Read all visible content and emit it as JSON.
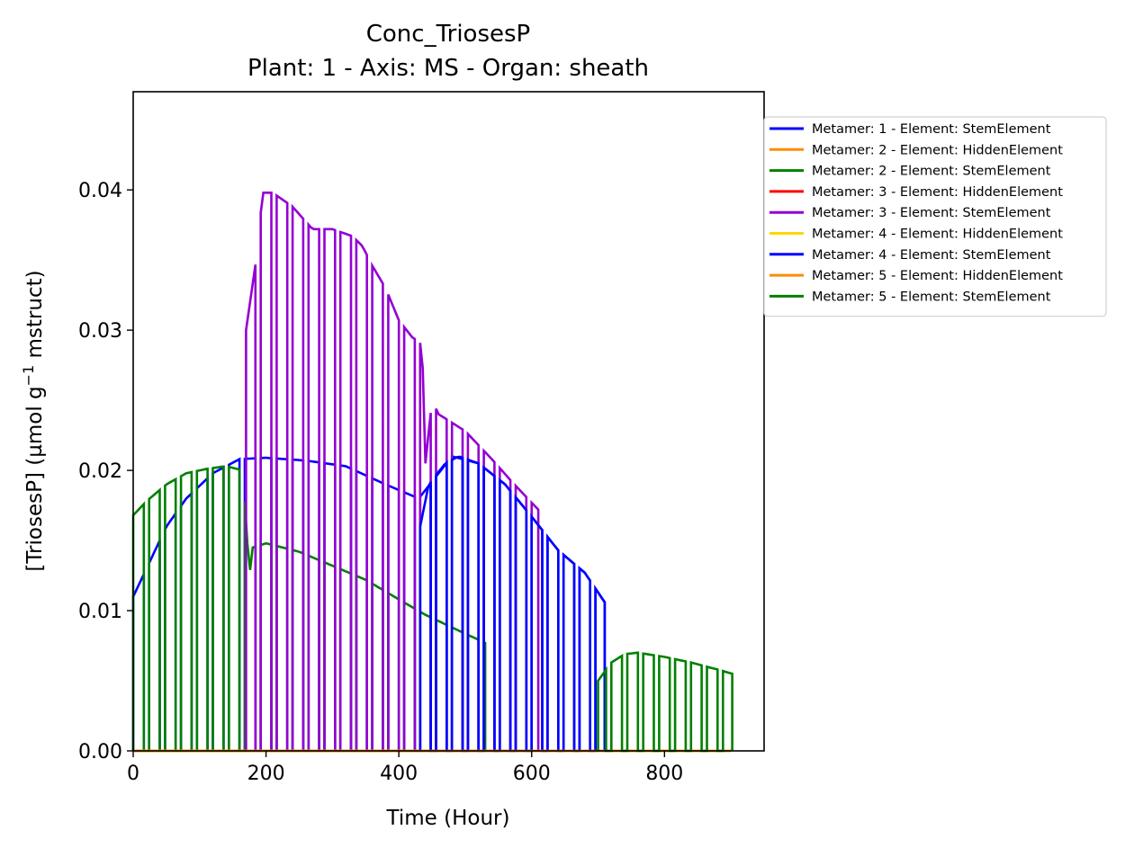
{
  "chart_data": {
    "type": "line",
    "title": "Conc_TriosesP",
    "subtitle": "Plant: 1 - Axis: MS - Organ: sheath",
    "xlabel": "Time (Hour)",
    "ylabel_main": "[TriosesP] (µmol g",
    "ylabel_sup": "−1",
    "ylabel_tail": " mstruct)",
    "xlim": [
      0,
      950
    ],
    "ylim": [
      0,
      0.047
    ],
    "xticks": [
      0,
      200,
      400,
      600,
      800
    ],
    "xtick_labels": [
      "0",
      "200",
      "400",
      "600",
      "800"
    ],
    "yticks": [
      0,
      0.01,
      0.02,
      0.03,
      0.04
    ],
    "ytick_labels": [
      "0.00",
      "0.01",
      "0.02",
      "0.03",
      "0.04"
    ],
    "grid": false,
    "legend_position": "outside-right-top",
    "series": [
      {
        "name": "Metamer: 1 - Element: StemElement",
        "color": "#0000ff",
        "start": 0,
        "end": 710,
        "envelope": [
          [
            0,
            0.011
          ],
          [
            20,
            0.013
          ],
          [
            50,
            0.016
          ],
          [
            80,
            0.018
          ],
          [
            120,
            0.0198
          ],
          [
            160,
            0.0208
          ],
          [
            200,
            0.0209
          ],
          [
            260,
            0.0207
          ],
          [
            320,
            0.0203
          ],
          [
            380,
            0.019
          ],
          [
            430,
            0.018
          ],
          [
            480,
            0.021
          ],
          [
            520,
            0.0205
          ],
          [
            560,
            0.019
          ],
          [
            600,
            0.0167
          ],
          [
            640,
            0.0143
          ],
          [
            680,
            0.0127
          ],
          [
            710,
            0.0106
          ]
        ]
      },
      {
        "name": "Metamer: 2 - Element: HiddenElement",
        "color": "#ff8c00",
        "start": 0,
        "end": 900,
        "envelope": [
          [
            0,
            0
          ],
          [
            900,
            0
          ]
        ]
      },
      {
        "name": "Metamer: 2 - Element: StemElement",
        "color": "#008000",
        "start": 0,
        "end": 530,
        "envelope": [
          [
            0,
            0.0168
          ],
          [
            20,
            0.0178
          ],
          [
            50,
            0.019
          ],
          [
            80,
            0.0198
          ],
          [
            110,
            0.0201
          ],
          [
            140,
            0.0203
          ],
          [
            165,
            0.02
          ],
          [
            175,
            0.0125
          ],
          [
            180,
            0.0145
          ],
          [
            200,
            0.0148
          ],
          [
            250,
            0.0142
          ],
          [
            300,
            0.0132
          ],
          [
            350,
            0.0122
          ],
          [
            400,
            0.0108
          ],
          [
            440,
            0.0097
          ],
          [
            480,
            0.0088
          ],
          [
            530,
            0.0077
          ]
        ]
      },
      {
        "name": "Metamer: 3 - Element: HiddenElement",
        "color": "#ff0000",
        "start": 0,
        "end": 600,
        "envelope": [
          [
            0,
            0
          ],
          [
            600,
            0
          ]
        ]
      },
      {
        "name": "Metamer: 3 - Element: StemElement",
        "color": "#9400d3",
        "start": 170,
        "end": 610,
        "envelope": [
          [
            170,
            0.03
          ],
          [
            185,
            0.035
          ],
          [
            195,
            0.0398
          ],
          [
            210,
            0.0398
          ],
          [
            240,
            0.0388
          ],
          [
            270,
            0.0372
          ],
          [
            300,
            0.0372
          ],
          [
            330,
            0.0367
          ],
          [
            345,
            0.036
          ],
          [
            360,
            0.0346
          ],
          [
            380,
            0.033
          ],
          [
            400,
            0.0307
          ],
          [
            420,
            0.0295
          ],
          [
            435,
            0.029
          ],
          [
            440,
            0.0205
          ],
          [
            450,
            0.025
          ],
          [
            460,
            0.024
          ],
          [
            500,
            0.0228
          ],
          [
            540,
            0.0208
          ],
          [
            570,
            0.0192
          ],
          [
            610,
            0.0172
          ]
        ]
      },
      {
        "name": "Metamer: 4 - Element: HiddenElement",
        "color": "#ffd700",
        "start": 0,
        "end": 900,
        "envelope": [
          [
            0,
            0
          ],
          [
            900,
            0
          ]
        ]
      },
      {
        "name": "Metamer: 4 - Element: StemElement",
        "color": "#0000ff",
        "start": 430,
        "end": 710,
        "envelope": [
          [
            430,
            0.0155
          ],
          [
            445,
            0.019
          ],
          [
            470,
            0.0205
          ],
          [
            490,
            0.021
          ],
          [
            520,
            0.0205
          ],
          [
            560,
            0.019
          ],
          [
            600,
            0.0167
          ],
          [
            640,
            0.0143
          ],
          [
            680,
            0.0127
          ],
          [
            710,
            0.0106
          ]
        ]
      },
      {
        "name": "Metamer: 5 - Element: HiddenElement",
        "color": "#ff8c00",
        "start": 0,
        "end": 900,
        "envelope": [
          [
            0,
            0
          ],
          [
            900,
            0
          ]
        ]
      },
      {
        "name": "Metamer: 5 - Element: StemElement",
        "color": "#008000",
        "start": 700,
        "end": 902,
        "envelope": [
          [
            700,
            0.005
          ],
          [
            720,
            0.0063
          ],
          [
            740,
            0.0069
          ],
          [
            760,
            0.007
          ],
          [
            800,
            0.0067
          ],
          [
            840,
            0.0063
          ],
          [
            880,
            0.0058
          ],
          [
            902,
            0.0055
          ]
        ]
      }
    ]
  }
}
